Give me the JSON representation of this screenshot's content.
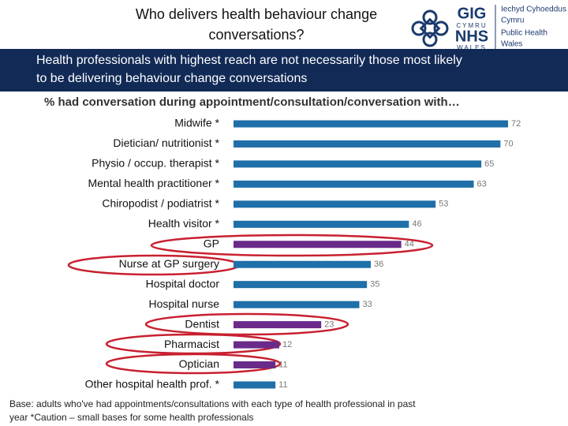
{
  "header": {
    "title_lines": [
      "Who delivers health behaviour change",
      "conversations?"
    ],
    "banner_lines": [
      "Health professionals with highest reach are not necessarily those most likely",
      "to be delivering behaviour change conversations"
    ]
  },
  "logo": {
    "gig": "GIG",
    "cymru": "CYMRU",
    "nhs": "NHS",
    "wales": "WALES",
    "org_lines": [
      "Iechyd Cyhoeddus",
      "Cymru",
      "Public Health",
      "Wales"
    ]
  },
  "chart_data": {
    "type": "bar",
    "orientation": "horizontal",
    "title": "% had conversation during appointment/consultation/conversation with…",
    "categories": [
      "Midwife *",
      "Dietician/ nutritionist *",
      "Physio / occup. therapist *",
      "Mental health practitioner *",
      "Chiropodist / podiatrist *",
      "Health visitor *",
      "GP",
      "Nurse at GP surgery",
      "Hospital doctor",
      "Hospital nurse",
      "Dentist",
      "Pharmacist",
      "Optician",
      "Other hospital health prof. *"
    ],
    "values": [
      72,
      70,
      65,
      63,
      53,
      46,
      44,
      36,
      35,
      33,
      23,
      12,
      11,
      11
    ],
    "colors": [
      "#1f6fa8",
      "#1f6fa8",
      "#1f6fa8",
      "#1f6fa8",
      "#1f6fa8",
      "#1f6fa8",
      "#6a2a8a",
      "#1f6fa8",
      "#1f6fa8",
      "#1f6fa8",
      "#6a2a8a",
      "#6a2a8a",
      "#6a2a8a",
      "#1f6fa8"
    ],
    "footnote_lines": [
      "Base: adults who've had appointments/consultations with each type of health professional in past",
      "year *Caution – small bases for some health professionals"
    ]
  }
}
